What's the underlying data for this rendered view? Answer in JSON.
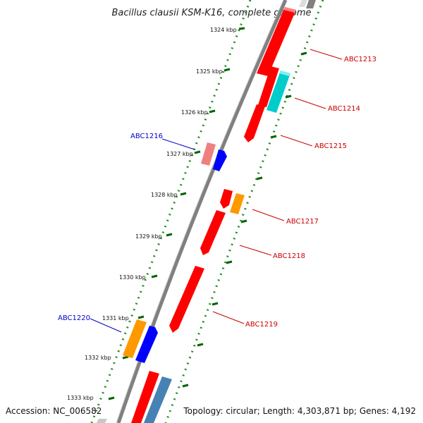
{
  "title": "Bacillus clausii KSM-K16, complete genome",
  "accession": "Accession: NC_006582",
  "topology": "Topology: circular; Length: 4,303,871 bp; Genes: 4,192",
  "ticks": [
    "1324 kbp",
    "1325 kbp",
    "1326 kbp",
    "1327 kbp",
    "1328 kbp",
    "1329 kbp",
    "1330 kbp",
    "1331 kbp",
    "1332 kbp",
    "1333 kbp"
  ],
  "genes_right": [
    {
      "name": "ABC1213",
      "color": "#cc0000"
    },
    {
      "name": "ABC1214",
      "color": "#cc0000"
    },
    {
      "name": "ABC1215",
      "color": "#cc0000"
    },
    {
      "name": "ABC1217",
      "color": "#cc0000"
    },
    {
      "name": "ABC1218",
      "color": "#cc0000"
    },
    {
      "name": "ABC1219",
      "color": "#cc0000"
    }
  ],
  "genes_left": [
    {
      "name": "ABC1216",
      "color": "#0000cc"
    },
    {
      "name": "ABC1220",
      "color": "#0000cc"
    }
  ],
  "colors": {
    "backbone": "#808080",
    "gene_red": "#ff0000",
    "gene_cyan": "#00cccc",
    "gene_blue": "#0000ff",
    "gene_pink": "#f08080",
    "gene_orange": "#ff9900",
    "gene_steelblue": "#4682b4",
    "dots": "#228b22"
  }
}
